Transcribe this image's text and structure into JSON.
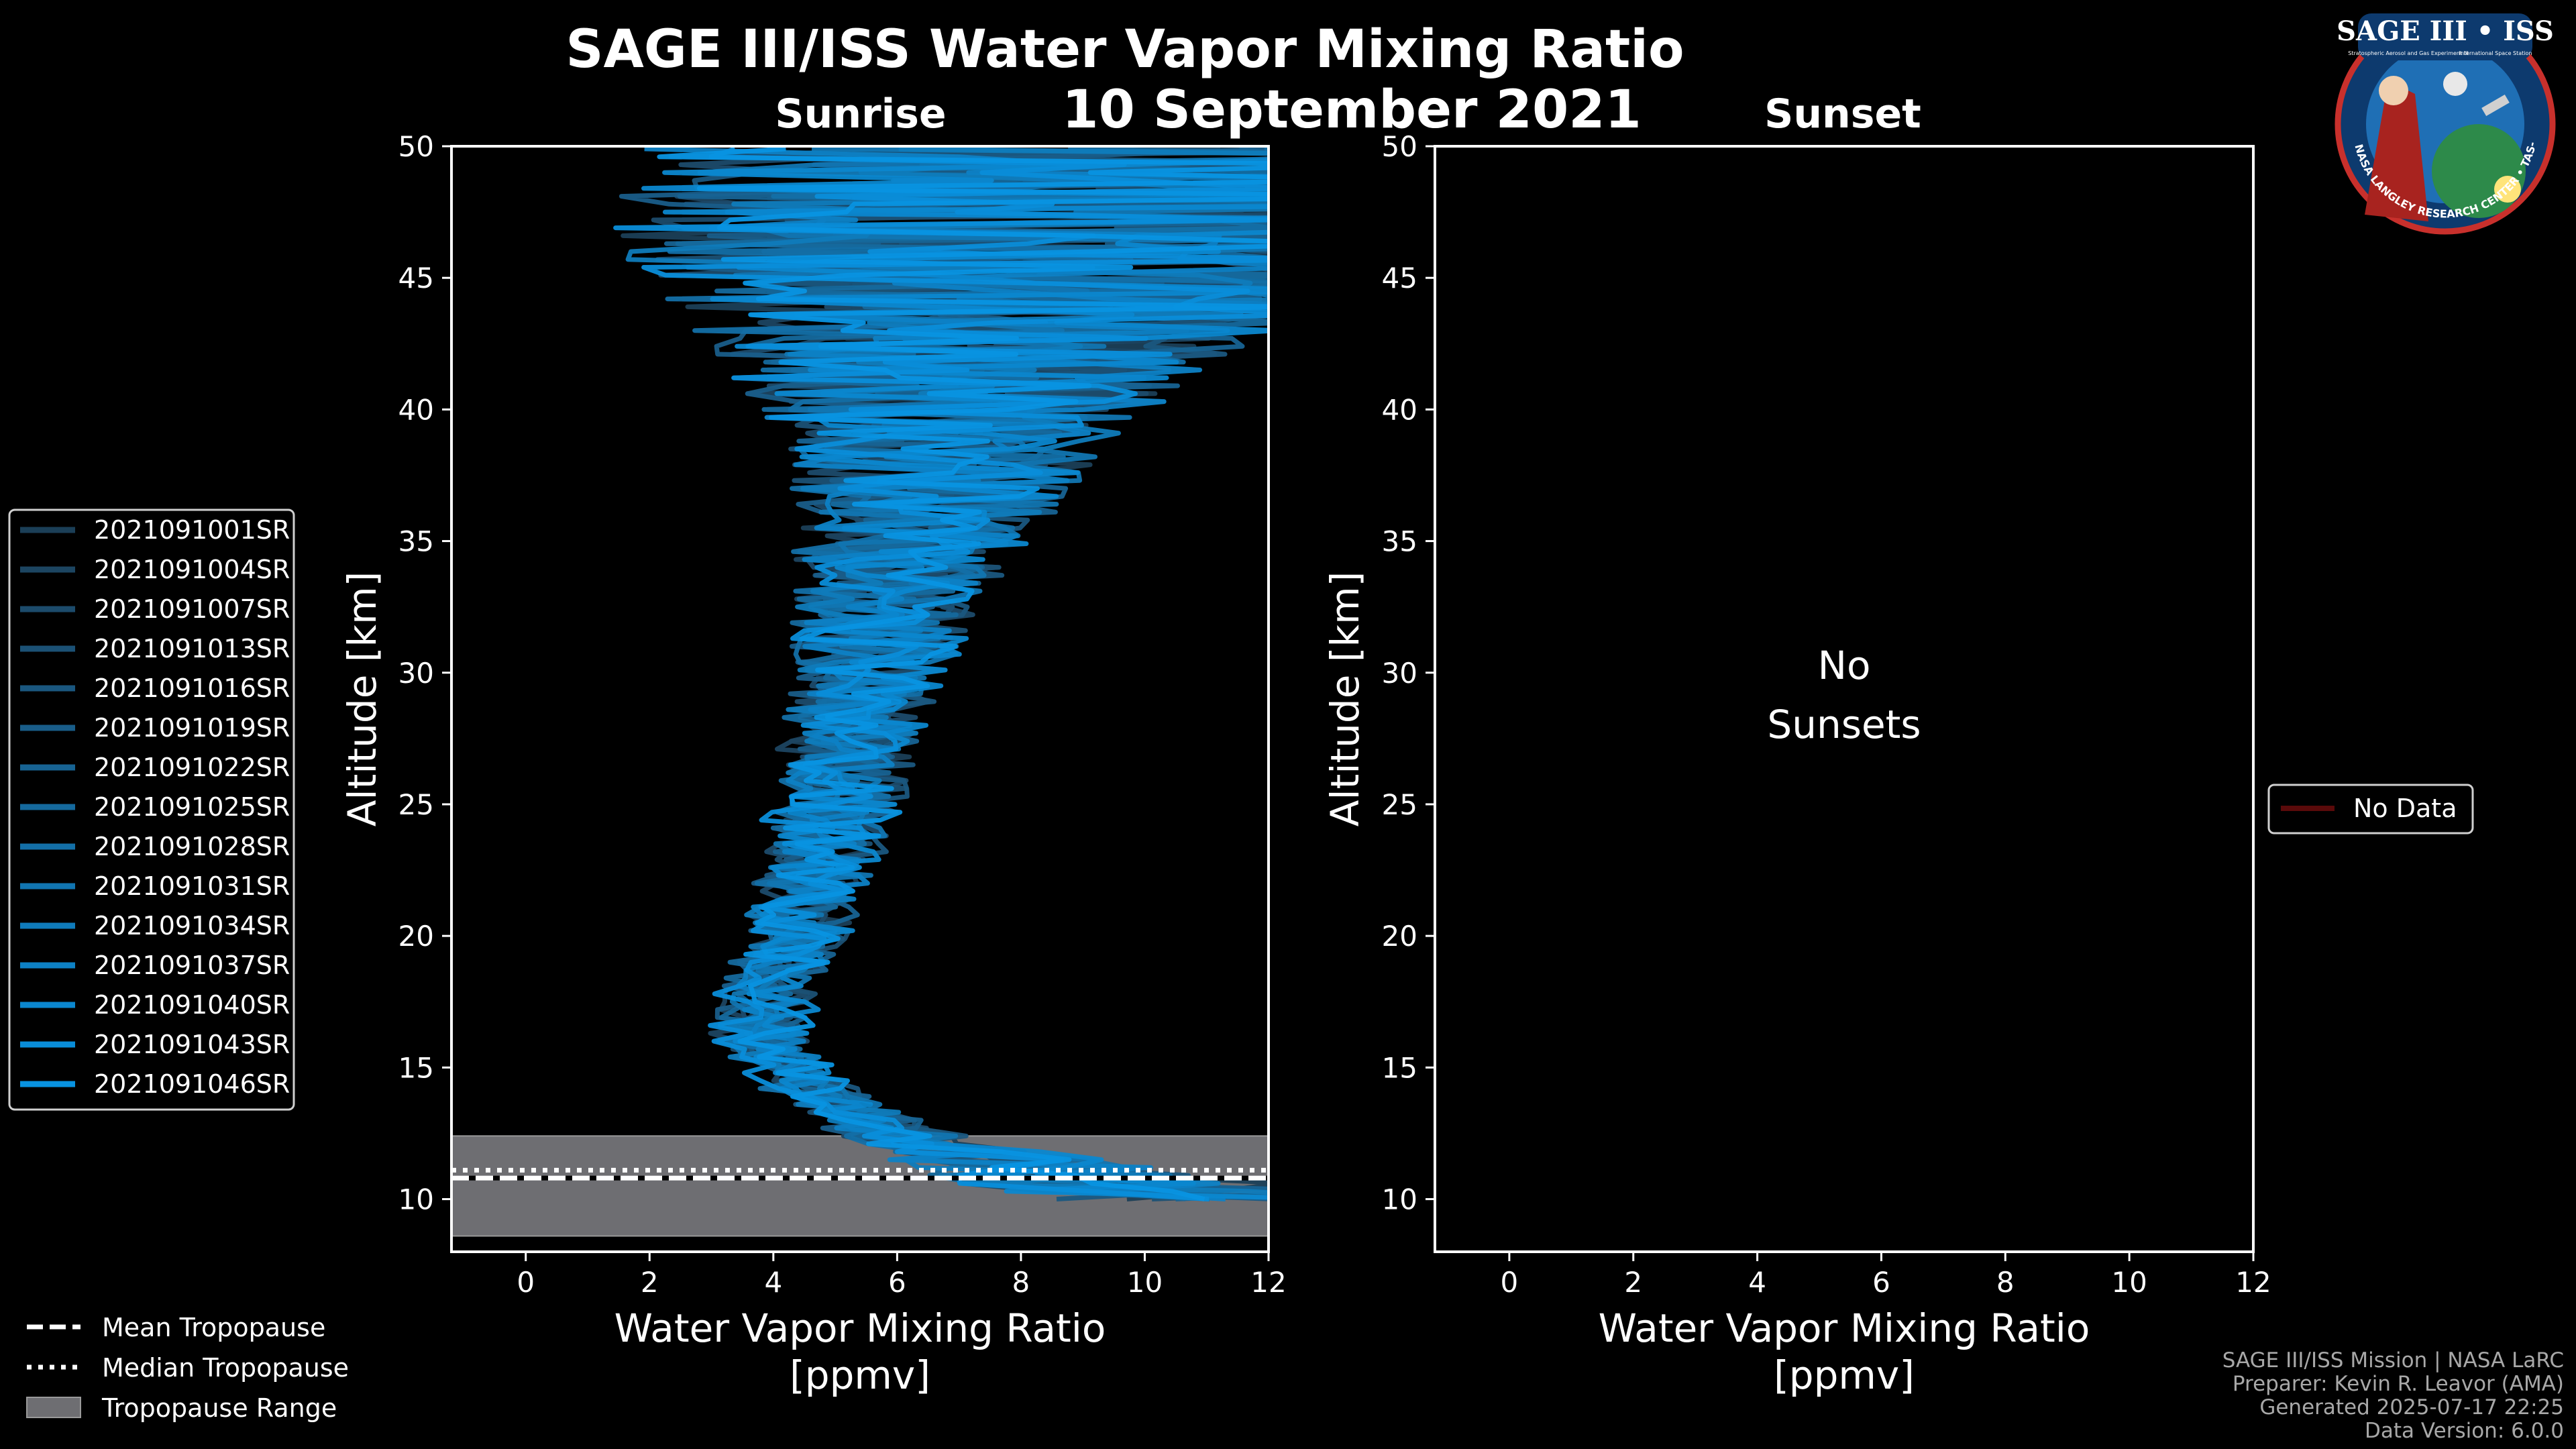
{
  "header": {
    "title": "SAGE III/ISS Water Vapor Mixing Ratio",
    "date": "10 September 2021",
    "left_label": "Sunrise",
    "right_label": "Sunset"
  },
  "logo": {
    "name": "SAGE III • ISS",
    "subtitle": "Stratospheric Aerosol and Gas Experiment III",
    "iss": "International Space Station",
    "ring": "BALL • NASA LANGLEY RESEARCH CENTER • TAS-I • ESA"
  },
  "chart_data": [
    {
      "panel": "sunrise",
      "type": "line",
      "title": "Sunrise",
      "xlabel": "Water Vapor Mixing Ratio\n[ppmv]",
      "ylabel": "Altitude [km]",
      "xlim": [
        -1.2,
        12
      ],
      "ylim": [
        8,
        50
      ],
      "xticks": [
        0,
        2,
        4,
        6,
        8,
        10,
        12
      ],
      "yticks": [
        10,
        15,
        20,
        25,
        30,
        35,
        40,
        45,
        50
      ],
      "series": [
        {
          "name": "2021091001SR",
          "color": "#1b3f57"
        },
        {
          "name": "2021091004SR",
          "color": "#1c4561"
        },
        {
          "name": "2021091007SR",
          "color": "#1c4b6b"
        },
        {
          "name": "2021091013SR",
          "color": "#1b5175"
        },
        {
          "name": "2021091016SR",
          "color": "#1a577f"
        },
        {
          "name": "2021091019SR",
          "color": "#195d89"
        },
        {
          "name": "2021091022SR",
          "color": "#176393"
        },
        {
          "name": "2021091025SR",
          "color": "#15699d"
        },
        {
          "name": "2021091028SR",
          "color": "#136fa7"
        },
        {
          "name": "2021091031SR",
          "color": "#1175b1"
        },
        {
          "name": "2021091034SR",
          "color": "#0f7bbb"
        },
        {
          "name": "2021091037SR",
          "color": "#0d81c5"
        },
        {
          "name": "2021091040SR",
          "color": "#0b87cf"
        },
        {
          "name": "2021091043SR",
          "color": "#098dd9"
        },
        {
          "name": "2021091046SR",
          "color": "#0893e1"
        }
      ],
      "profile_envelope": {
        "altitude_km": [
          10,
          11,
          12,
          13,
          14,
          15,
          16,
          18,
          20,
          22,
          25,
          28,
          30,
          33,
          35,
          38,
          40,
          42,
          44,
          46,
          48,
          50
        ],
        "typical_ppmv": [
          11,
          8.5,
          6.5,
          5.5,
          4.6,
          4.2,
          3.8,
          3.9,
          4.3,
          4.6,
          5.0,
          5.3,
          5.5,
          5.9,
          6.2,
          6.6,
          6.9,
          7.4,
          7.9,
          8.5,
          9.2,
          10.0
        ],
        "spread_ppmv": [
          3.5,
          2.2,
          1.2,
          0.9,
          0.7,
          0.7,
          0.7,
          0.7,
          0.8,
          0.9,
          1.0,
          1.1,
          1.2,
          1.5,
          1.8,
          2.5,
          3.2,
          4.2,
          5.5,
          7.0,
          8.0,
          8.5
        ]
      },
      "tropopause": {
        "mean_km": 10.8,
        "median_km": 11.1,
        "range_km": [
          8.6,
          12.4
        ]
      }
    },
    {
      "panel": "sunset",
      "type": "line",
      "title": "Sunset",
      "xlabel": "Water Vapor Mixing Ratio\n[ppmv]",
      "ylabel": "Altitude [km]",
      "xlim": [
        -1.2,
        12
      ],
      "ylim": [
        8,
        50
      ],
      "xticks": [
        0,
        2,
        4,
        6,
        8,
        10,
        12
      ],
      "yticks": [
        10,
        15,
        20,
        25,
        30,
        35,
        40,
        45,
        50
      ],
      "annotation": "No\nSunsets",
      "series": [
        {
          "name": "No Data",
          "color": "#5a0a0a"
        }
      ]
    }
  ],
  "left_labels": {
    "xlabel_line1": "Water Vapor Mixing Ratio",
    "xlabel_line2": "[ppmv]",
    "ylabel": "Altitude [km]"
  },
  "right_labels": {
    "xlabel_line1": "Water Vapor Mixing Ratio",
    "xlabel_line2": "[ppmv]",
    "ylabel": "Altitude [km]",
    "annotation_line1": "No",
    "annotation_line2": "Sunsets"
  },
  "tropopause_legend": {
    "mean": "Mean Tropopause",
    "median": "Median Tropopause",
    "range": "Tropopause Range"
  },
  "nodata_legend": "No Data",
  "credits": {
    "line1": "SAGE III/ISS Mission | NASA LaRC",
    "line2": "Preparer: Kevin R. Leavor (AMA)",
    "line3": "Generated 2025-07-17 22:25",
    "line4": "Data Version: 6.0.0"
  },
  "colors": {
    "background": "#000000",
    "axes": "#ffffff",
    "tropopause_fill": "#6e6e72",
    "nodata": "#5a0a0a"
  }
}
